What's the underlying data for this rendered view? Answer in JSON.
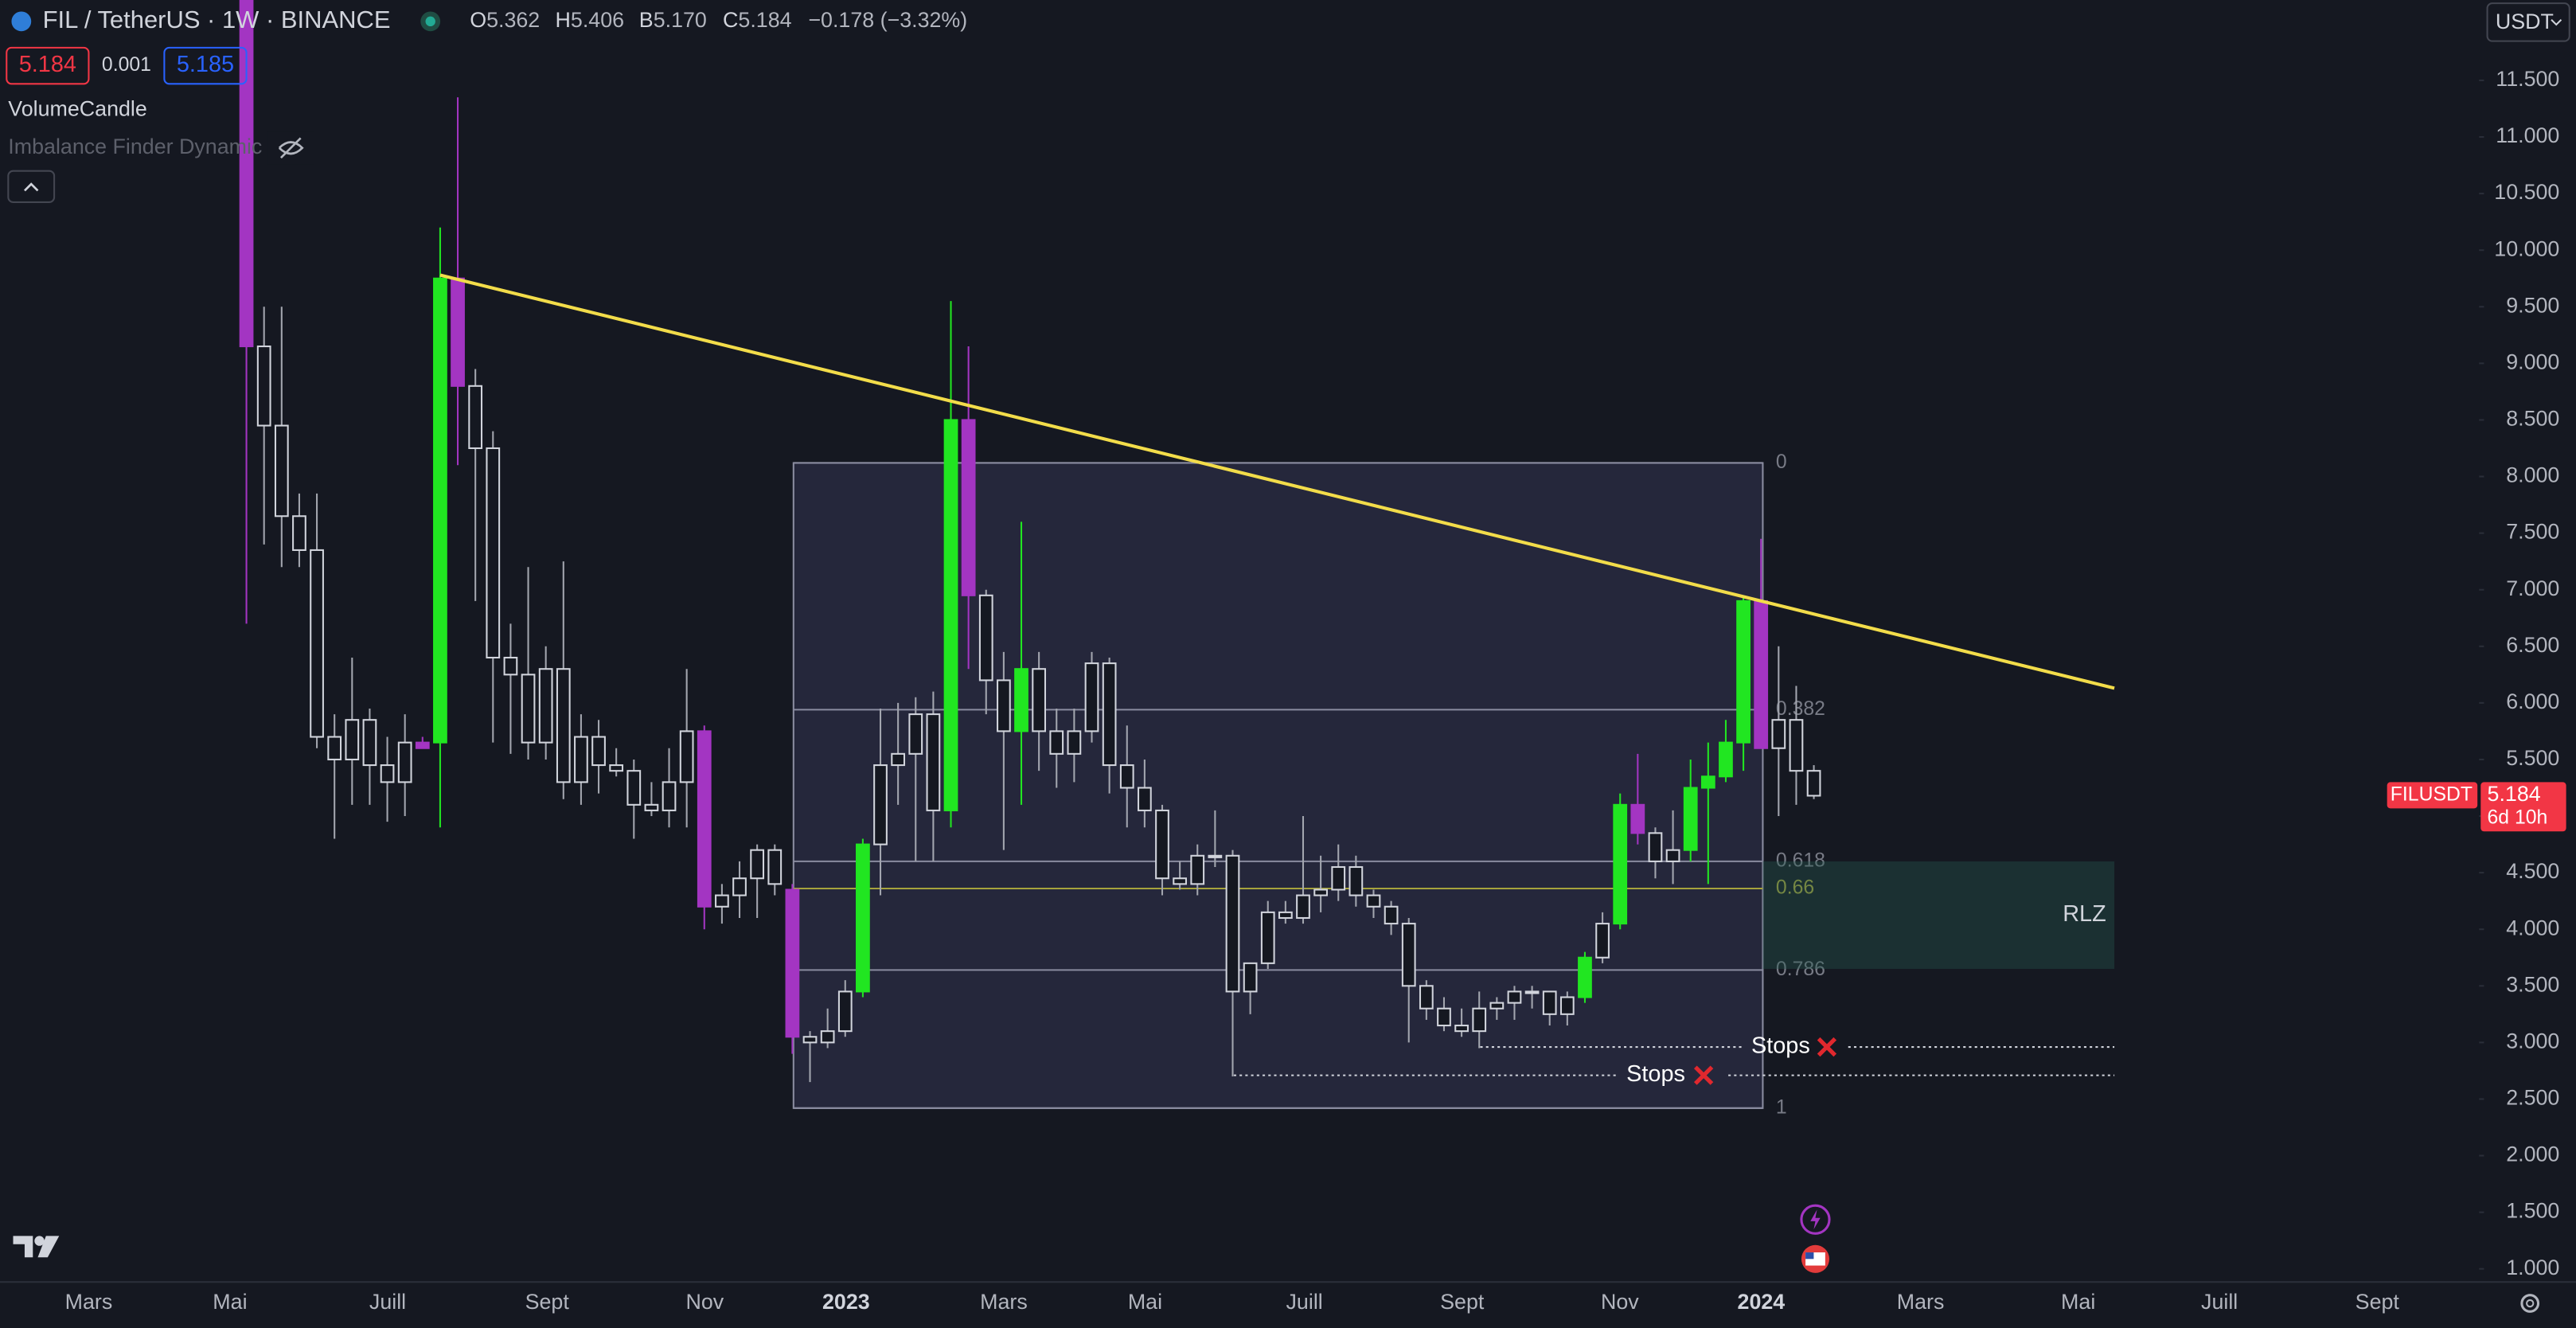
{
  "header": {
    "symbol": "FIL / TetherUS · 1W · BINANCE",
    "ohlc": [
      {
        "key": "O",
        "value": "5.362"
      },
      {
        "key": "H",
        "value": "5.406"
      },
      {
        "key": "B",
        "value": "5.170"
      },
      {
        "key": "C",
        "value": "5.184"
      }
    ],
    "change": "−0.178 (−3.32%)",
    "currency": "USDT"
  },
  "order": {
    "sell": "5.184",
    "spread": "0.001",
    "buy": "5.185"
  },
  "indicators": [
    "VolumeCandle",
    "Imbalance Finder Dynamic"
  ],
  "chart_data": {
    "type": "candlestick",
    "open": [
      12.3,
      9.15,
      8.45,
      7.65,
      7.35,
      5.7,
      5.5,
      5.85,
      5.45,
      5.3,
      5.65,
      5.65,
      9.75,
      8.8,
      8.25,
      6.4,
      6.25,
      5.65,
      6.3,
      5.3,
      5.7,
      5.45,
      5.4,
      5.1,
      5.05,
      5.3,
      5.75,
      4.2,
      4.3,
      4.45,
      4.7,
      4.35,
      3.05,
      3.0,
      3.1,
      3.45,
      4.75,
      5.45,
      5.55,
      5.9,
      5.05,
      8.5,
      6.95,
      6.2,
      5.75,
      6.3,
      5.75,
      5.55,
      5.75,
      6.35,
      5.45,
      5.25,
      5.05,
      4.45,
      4.4,
      4.65,
      4.65,
      3.45,
      3.7,
      4.15,
      4.1,
      4.3,
      4.35,
      4.55,
      4.3,
      4.2,
      4.05,
      3.5,
      3.3,
      3.15,
      3.1,
      3.3,
      3.35,
      3.45,
      3.45,
      3.25,
      3.4,
      3.75,
      4.05,
      5.1,
      4.85,
      4.6,
      4.7,
      5.25,
      5.35,
      5.65,
      6.9,
      5.6,
      5.85,
      5.4
    ],
    "high": [
      12.3,
      9.5,
      9.5,
      7.85,
      7.85,
      5.9,
      6.4,
      5.95,
      5.7,
      5.9,
      5.7,
      10.2,
      11.35,
      8.95,
      8.4,
      6.7,
      7.2,
      6.5,
      7.25,
      5.9,
      5.85,
      5.6,
      5.5,
      5.3,
      5.6,
      6.3,
      5.8,
      4.4,
      4.6,
      4.75,
      4.75,
      4.4,
      3.1,
      3.3,
      3.55,
      4.8,
      5.95,
      6.0,
      6.05,
      6.1,
      9.55,
      9.15,
      7.0,
      6.45,
      7.6,
      6.45,
      5.95,
      5.95,
      6.45,
      6.4,
      5.8,
      5.5,
      5.1,
      4.6,
      4.75,
      5.05,
      4.7,
      3.7,
      4.25,
      4.25,
      5.0,
      4.65,
      4.75,
      4.65,
      4.35,
      4.25,
      4.1,
      3.55,
      3.4,
      3.3,
      3.45,
      3.4,
      3.5,
      3.5,
      3.45,
      3.45,
      3.8,
      4.15,
      5.2,
      5.55,
      4.9,
      5.05,
      5.5,
      5.65,
      5.85,
      6.95,
      7.45,
      6.5,
      6.15,
      5.45
    ],
    "low": [
      6.7,
      7.4,
      7.2,
      7.2,
      5.6,
      4.8,
      5.1,
      5.1,
      4.95,
      5.0,
      5.6,
      4.9,
      8.1,
      6.9,
      5.65,
      5.55,
      5.5,
      5.5,
      5.15,
      5.1,
      5.2,
      5.35,
      4.8,
      5.0,
      4.9,
      4.9,
      4.0,
      4.05,
      4.1,
      4.1,
      4.3,
      2.9,
      2.65,
      2.95,
      3.05,
      3.4,
      4.3,
      5.1,
      4.6,
      4.6,
      4.9,
      6.3,
      5.9,
      4.7,
      5.1,
      5.4,
      5.25,
      5.3,
      5.65,
      5.2,
      4.9,
      4.9,
      4.3,
      4.35,
      4.3,
      4.55,
      2.7,
      3.25,
      3.65,
      4.05,
      4.05,
      4.15,
      4.25,
      4.2,
      4.1,
      3.95,
      3.0,
      3.2,
      3.1,
      3.05,
      2.95,
      3.2,
      3.2,
      3.3,
      3.15,
      3.15,
      3.35,
      3.7,
      4.0,
      4.75,
      4.45,
      4.4,
      4.6,
      4.4,
      5.3,
      5.4,
      5.6,
      5.0,
      5.1,
      5.15
    ],
    "close": [
      9.15,
      8.45,
      7.65,
      7.35,
      5.7,
      5.5,
      5.85,
      5.45,
      5.3,
      5.65,
      5.6,
      9.75,
      8.8,
      8.25,
      6.4,
      6.25,
      5.65,
      6.3,
      5.3,
      5.7,
      5.45,
      5.4,
      5.1,
      5.05,
      5.3,
      5.75,
      4.2,
      4.3,
      4.45,
      4.7,
      4.4,
      3.05,
      3.0,
      3.1,
      3.45,
      4.75,
      5.45,
      5.55,
      5.9,
      5.05,
      8.5,
      6.95,
      6.2,
      5.75,
      6.3,
      5.75,
      5.55,
      5.75,
      6.35,
      5.45,
      5.25,
      5.05,
      4.45,
      4.4,
      4.65,
      4.65,
      3.45,
      3.7,
      4.15,
      4.1,
      4.3,
      4.35,
      4.55,
      4.3,
      4.2,
      4.05,
      3.5,
      3.3,
      3.15,
      3.1,
      3.3,
      3.35,
      3.45,
      3.45,
      3.25,
      3.4,
      3.75,
      4.05,
      5.1,
      4.85,
      4.6,
      4.7,
      5.25,
      5.35,
      5.65,
      6.9,
      5.6,
      5.85,
      5.4,
      5.18
    ],
    "colors": [
      "#a335c2",
      "none",
      "none",
      "none",
      "none",
      "none",
      "none",
      "none",
      "none",
      "none",
      "#a335c2",
      "#21e621",
      "#a335c2",
      "none",
      "none",
      "none",
      "none",
      "none",
      "none",
      "none",
      "none",
      "none",
      "none",
      "none",
      "none",
      "none",
      "#a335c2",
      "none",
      "none",
      "none",
      "none",
      "#a335c2",
      "none",
      "none",
      "none",
      "#21e621",
      "none",
      "none",
      "none",
      "none",
      "#21e621",
      "#a335c2",
      "none",
      "none",
      "#21e621",
      "none",
      "none",
      "none",
      "none",
      "none",
      "none",
      "none",
      "none",
      "none",
      "none",
      "none",
      "none",
      "none",
      "none",
      "none",
      "none",
      "none",
      "none",
      "none",
      "none",
      "none",
      "none",
      "none",
      "none",
      "none",
      "none",
      "none",
      "none",
      "none",
      "none",
      "none",
      "#21e621",
      "none",
      "#21e621",
      "#a335c2",
      "none",
      "none",
      "#21e621",
      "#21e621",
      "#21e621",
      "#21e621",
      "#a335c2",
      "none",
      "none",
      "none"
    ],
    "ylim": [
      0.884,
      12.21
    ],
    "yticks": [
      {
        "value": 11.5,
        "label": "11.500"
      },
      {
        "value": 11,
        "label": "11.000"
      },
      {
        "value": 10.5,
        "label": "10.500"
      },
      {
        "value": 10,
        "label": "10.000"
      },
      {
        "value": 9.5,
        "label": "9.500"
      },
      {
        "value": 9,
        "label": "9.000"
      },
      {
        "value": 8.5,
        "label": "8.500"
      },
      {
        "value": 8,
        "label": "8.000"
      },
      {
        "value": 7.5,
        "label": "7.500"
      },
      {
        "value": 7,
        "label": "7.000"
      },
      {
        "value": 6.5,
        "label": "6.500"
      },
      {
        "value": 6,
        "label": "6.000"
      },
      {
        "value": 5.5,
        "label": "5.500"
      },
      {
        "value": 5,
        "label": "5.000"
      },
      {
        "value": 4.5,
        "label": "4.500"
      },
      {
        "value": 4,
        "label": "4.000"
      },
      {
        "value": 3.5,
        "label": "3.500"
      },
      {
        "value": 3,
        "label": "3.000"
      },
      {
        "value": 2.5,
        "label": "2.500"
      },
      {
        "value": 2,
        "label": "2.000"
      },
      {
        "value": 1.5,
        "label": "1.500"
      },
      {
        "value": 1,
        "label": "1.000"
      }
    ],
    "xtick_labels": [
      "Mars",
      "Mai",
      "Juill",
      "Sept",
      "Nov",
      "2023",
      "Mars",
      "Mai",
      "Juill",
      "Sept",
      "Nov",
      "2024",
      "Mars",
      "Mai",
      "Juill",
      "Sept"
    ],
    "fib": [
      {
        "ratio": 0,
        "price": 8.12
      },
      {
        "ratio": 0.382,
        "price": 5.94
      },
      {
        "ratio": 0.618,
        "price": 4.6
      },
      {
        "ratio": 0.66,
        "price": 4.36
      },
      {
        "ratio": 0.786,
        "price": 3.64
      },
      {
        "ratio": 1,
        "price": 2.42
      }
    ],
    "trendline": {
      "color": "#f2dc4a",
      "prices": [
        9.78,
        6.13
      ]
    },
    "zone": {
      "label": "RLZ",
      "top": 4.6,
      "bottom": 3.65
    },
    "stops": [
      {
        "label": "Stops",
        "price": 2.96
      },
      {
        "label": "Stops",
        "price": 2.71
      }
    ],
    "price_tag": {
      "symbol": "FILUSDT",
      "price": 5.184,
      "countdown": "6d 10h"
    }
  }
}
